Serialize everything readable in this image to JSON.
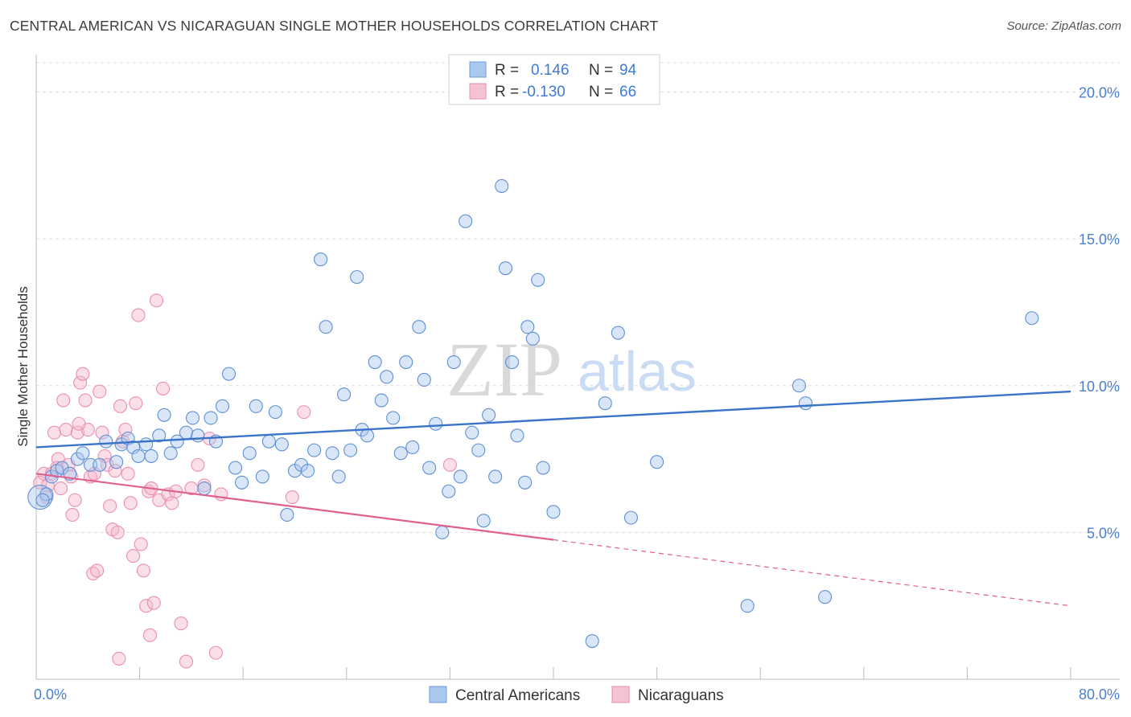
{
  "title": "CENTRAL AMERICAN VS NICARAGUAN SINGLE MOTHER HOUSEHOLDS CORRELATION CHART",
  "source": "Source: ZipAtlas.com",
  "watermark": {
    "zip": "ZIP",
    "atlas": "atlas"
  },
  "colors": {
    "blue": "#3a73c9",
    "blue_fill": "#aac8ee",
    "pink": "#e0608e",
    "pink_fill": "#f5b7cb",
    "tick": "#4a7fd0"
  },
  "legend": {
    "r_label": "R =",
    "n_label": "N =",
    "rows": [
      {
        "r": "0.146",
        "n": "94"
      },
      {
        "r": "-0.130",
        "n": "66"
      }
    ]
  },
  "chart_data": {
    "type": "scatter",
    "title": "CENTRAL AMERICAN VS NICARAGUAN SINGLE MOTHER HOUSEHOLDS CORRELATION CHART",
    "xlabel": "",
    "ylabel": "Single Mother Households",
    "xlim": [
      0,
      80
    ],
    "ylim": [
      0,
      21
    ],
    "x_tick_labels": [
      "0.0%",
      "80.0%"
    ],
    "y_ticks": [
      5,
      10,
      15,
      20
    ],
    "y_tick_labels": [
      "5.0%",
      "10.0%",
      "15.0%",
      "20.0%"
    ],
    "grid": true,
    "legend_position": "top-center",
    "series": [
      {
        "name": "Central Americans",
        "r": 0.146,
        "n": 94,
        "trend": {
          "x": [
            0,
            80
          ],
          "y": [
            7.9,
            9.8
          ]
        },
        "points": [
          [
            0.3,
            6.2
          ],
          [
            0.8,
            6.3
          ],
          [
            1.2,
            6.9
          ],
          [
            1.6,
            7.1
          ],
          [
            2.0,
            7.2
          ],
          [
            2.6,
            7.0
          ],
          [
            3.2,
            7.5
          ],
          [
            3.6,
            7.7
          ],
          [
            4.2,
            7.3
          ],
          [
            4.9,
            7.3
          ],
          [
            5.4,
            8.1
          ],
          [
            6.2,
            7.4
          ],
          [
            6.6,
            8.0
          ],
          [
            7.1,
            8.2
          ],
          [
            7.5,
            7.9
          ],
          [
            7.9,
            7.6
          ],
          [
            8.5,
            8.0
          ],
          [
            8.9,
            7.6
          ],
          [
            9.5,
            8.3
          ],
          [
            9.9,
            9.0
          ],
          [
            10.4,
            7.7
          ],
          [
            10.9,
            8.1
          ],
          [
            11.6,
            8.4
          ],
          [
            12.1,
            8.9
          ],
          [
            12.5,
            8.3
          ],
          [
            13.0,
            6.5
          ],
          [
            13.5,
            8.9
          ],
          [
            13.9,
            8.1
          ],
          [
            14.4,
            9.3
          ],
          [
            14.9,
            10.4
          ],
          [
            15.4,
            7.2
          ],
          [
            15.9,
            6.7
          ],
          [
            16.5,
            7.7
          ],
          [
            17.0,
            9.3
          ],
          [
            17.5,
            6.9
          ],
          [
            18.0,
            8.1
          ],
          [
            18.5,
            9.1
          ],
          [
            19.0,
            8.0
          ],
          [
            19.4,
            5.6
          ],
          [
            20.0,
            7.1
          ],
          [
            20.5,
            7.3
          ],
          [
            21.0,
            7.1
          ],
          [
            21.5,
            7.8
          ],
          [
            22.0,
            14.3
          ],
          [
            22.4,
            12.0
          ],
          [
            22.9,
            7.7
          ],
          [
            23.4,
            6.9
          ],
          [
            23.8,
            9.7
          ],
          [
            24.3,
            7.8
          ],
          [
            24.8,
            13.7
          ],
          [
            25.2,
            8.5
          ],
          [
            25.6,
            8.3
          ],
          [
            26.2,
            10.8
          ],
          [
            26.7,
            9.5
          ],
          [
            27.1,
            10.3
          ],
          [
            27.6,
            8.9
          ],
          [
            28.2,
            7.7
          ],
          [
            28.6,
            10.8
          ],
          [
            29.1,
            7.9
          ],
          [
            29.6,
            12.0
          ],
          [
            30.0,
            10.2
          ],
          [
            30.4,
            7.2
          ],
          [
            30.9,
            8.7
          ],
          [
            31.4,
            5.0
          ],
          [
            31.9,
            6.4
          ],
          [
            32.3,
            10.8
          ],
          [
            32.8,
            6.9
          ],
          [
            33.2,
            15.6
          ],
          [
            33.7,
            8.4
          ],
          [
            34.2,
            7.8
          ],
          [
            34.6,
            5.4
          ],
          [
            35.0,
            9.0
          ],
          [
            35.5,
            6.9
          ],
          [
            36.0,
            16.8
          ],
          [
            36.3,
            14.0
          ],
          [
            36.8,
            10.8
          ],
          [
            37.2,
            8.3
          ],
          [
            37.8,
            6.7
          ],
          [
            38.0,
            12.0
          ],
          [
            38.4,
            11.6
          ],
          [
            38.8,
            13.6
          ],
          [
            39.2,
            7.2
          ],
          [
            40.0,
            5.7
          ],
          [
            43.0,
            1.3
          ],
          [
            44.0,
            9.4
          ],
          [
            45.0,
            11.8
          ],
          [
            46.0,
            5.5
          ],
          [
            48.0,
            7.4
          ],
          [
            55.0,
            2.5
          ],
          [
            59.0,
            10.0
          ],
          [
            59.5,
            9.4
          ],
          [
            61.0,
            2.8
          ],
          [
            77.0,
            12.3
          ],
          [
            0.5,
            6.1
          ]
        ]
      },
      {
        "name": "Nicaraguans",
        "r": -0.13,
        "n": 66,
        "trend": {
          "x": [
            0,
            80
          ],
          "y": [
            7.0,
            2.5
          ],
          "solid_until_x": 40
        },
        "points": [
          [
            0.3,
            6.7
          ],
          [
            0.6,
            7.0
          ],
          [
            0.9,
            6.6
          ],
          [
            1.2,
            7.0
          ],
          [
            1.4,
            8.4
          ],
          [
            1.7,
            7.5
          ],
          [
            1.9,
            6.5
          ],
          [
            2.1,
            9.5
          ],
          [
            2.3,
            8.5
          ],
          [
            2.5,
            7.3
          ],
          [
            2.8,
            5.6
          ],
          [
            3.0,
            6.1
          ],
          [
            3.2,
            8.4
          ],
          [
            3.4,
            10.1
          ],
          [
            3.6,
            10.4
          ],
          [
            3.8,
            9.5
          ],
          [
            4.0,
            8.5
          ],
          [
            4.2,
            6.9
          ],
          [
            4.4,
            3.6
          ],
          [
            4.7,
            3.7
          ],
          [
            4.9,
            9.8
          ],
          [
            5.1,
            8.4
          ],
          [
            5.3,
            7.6
          ],
          [
            5.5,
            7.3
          ],
          [
            5.7,
            5.9
          ],
          [
            5.9,
            5.1
          ],
          [
            6.1,
            7.1
          ],
          [
            6.3,
            5.0
          ],
          [
            6.5,
            9.3
          ],
          [
            6.7,
            8.1
          ],
          [
            6.9,
            8.5
          ],
          [
            7.1,
            7.0
          ],
          [
            7.3,
            6.0
          ],
          [
            7.5,
            4.2
          ],
          [
            7.7,
            9.4
          ],
          [
            7.9,
            12.4
          ],
          [
            8.1,
            4.6
          ],
          [
            8.3,
            3.7
          ],
          [
            8.5,
            2.5
          ],
          [
            8.7,
            6.4
          ],
          [
            8.9,
            6.5
          ],
          [
            9.1,
            2.6
          ],
          [
            9.3,
            12.9
          ],
          [
            9.5,
            6.1
          ],
          [
            9.8,
            9.9
          ],
          [
            10.2,
            6.3
          ],
          [
            10.5,
            6.0
          ],
          [
            10.8,
            6.4
          ],
          [
            11.2,
            1.9
          ],
          [
            11.6,
            0.6
          ],
          [
            12.0,
            6.5
          ],
          [
            12.5,
            7.3
          ],
          [
            13.0,
            6.6
          ],
          [
            13.4,
            8.2
          ],
          [
            13.9,
            0.9
          ],
          [
            14.3,
            6.3
          ],
          [
            8.8,
            1.5
          ],
          [
            6.4,
            0.7
          ],
          [
            3.3,
            8.7
          ],
          [
            2.7,
            6.9
          ],
          [
            19.8,
            6.2
          ],
          [
            20.7,
            9.1
          ],
          [
            32.0,
            7.3
          ],
          [
            0.8,
            6.2
          ],
          [
            1.6,
            7.2
          ],
          [
            4.5,
            7.0
          ]
        ]
      }
    ]
  },
  "bottom_legend": [
    "Central Americans",
    "Nicaraguans"
  ]
}
